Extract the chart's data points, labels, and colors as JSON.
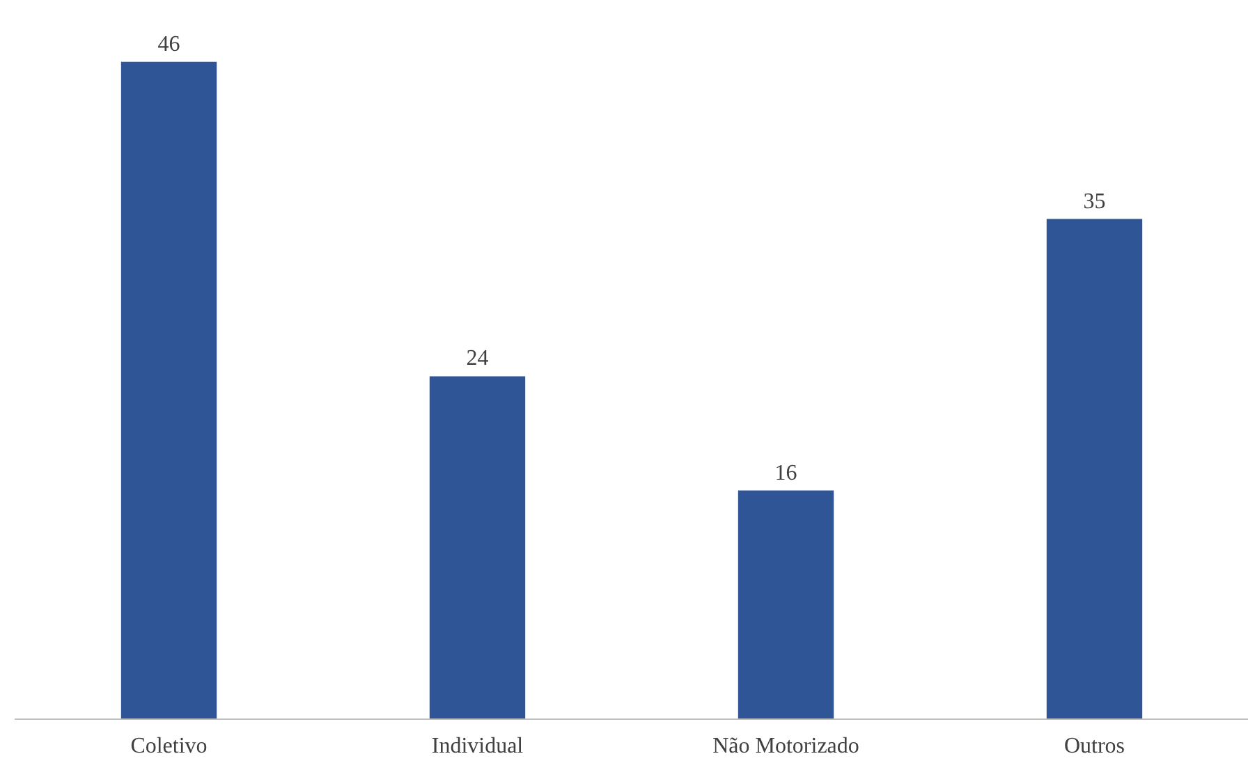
{
  "chart_data": {
    "type": "bar",
    "categories": [
      "Coletivo",
      "Individual",
      "Não Motorizado",
      "Outros"
    ],
    "values": [
      46,
      24,
      16,
      35
    ],
    "color": "#2f5597",
    "data_labels": true
  }
}
